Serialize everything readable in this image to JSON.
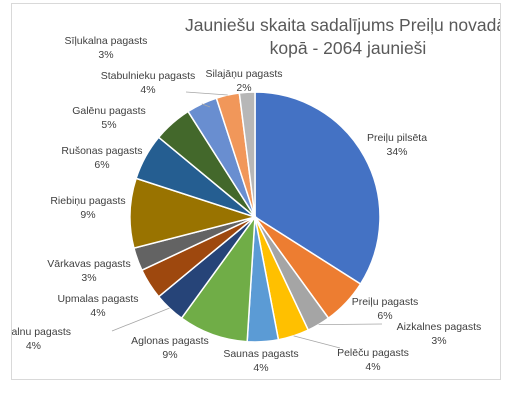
{
  "chart_data": {
    "type": "pie",
    "title": [
      "Jauniešu skaita sadalījums Preiļu novadā,",
      "kopā -  2064 jaunieši"
    ],
    "slices": [
      {
        "label": "Preiļu pilsēta",
        "value": 34,
        "pct": "34%",
        "color": "#4472c4"
      },
      {
        "label": "Preiļu pagasts",
        "value": 6,
        "pct": "6%",
        "color": "#ed7d31"
      },
      {
        "label": "Aizkalnes pagasts",
        "value": 3,
        "pct": "3%",
        "color": "#a5a5a5"
      },
      {
        "label": "Pelēču pagasts",
        "value": 4,
        "pct": "4%",
        "color": "#ffc000"
      },
      {
        "label": "Saunas pagasts",
        "value": 4,
        "pct": "4%",
        "color": "#5b9bd5"
      },
      {
        "label": "Aglonas pagasts",
        "value": 9,
        "pct": "9%",
        "color": "#70ad47"
      },
      {
        "label": "Rožkalnu pagasts",
        "value": 4,
        "pct": "4%",
        "color": "#264478"
      },
      {
        "label": "Upmalas pagasts",
        "value": 4,
        "pct": "4%",
        "color": "#9e480e"
      },
      {
        "label": "Vārkavas pagasts",
        "value": 3,
        "pct": "3%",
        "color": "#636363"
      },
      {
        "label": "Riebiņu pagasts",
        "value": 9,
        "pct": "9%",
        "color": "#997300"
      },
      {
        "label": "Rušonas pagasts",
        "value": 6,
        "pct": "6%",
        "color": "#255e91"
      },
      {
        "label": "Galēnu pagasts",
        "value": 5,
        "pct": "5%",
        "color": "#43682b"
      },
      {
        "label": "Stabulnieku pagasts",
        "value": 4,
        "pct": "4%",
        "color": "#698ed0"
      },
      {
        "label": "Sīļukalna pagasts",
        "value": 3,
        "pct": "3%",
        "color": "#f1975a"
      },
      {
        "label": "Silajāņu pagasts",
        "value": 2,
        "pct": "2%",
        "color": "#b7b7b7"
      }
    ],
    "legend": "none"
  }
}
